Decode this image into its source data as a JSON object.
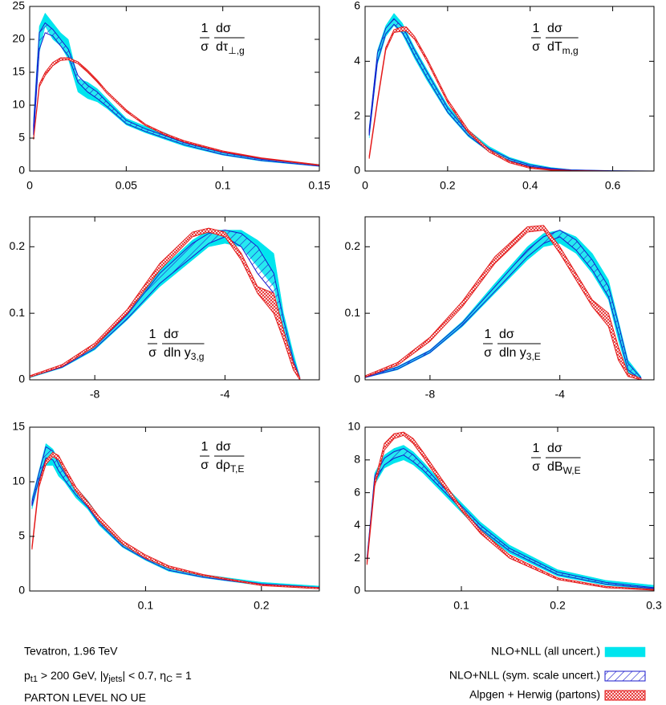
{
  "chart_data": [
    {
      "type": "line",
      "label": {
        "one": "1",
        "sigma": "σ",
        "dsigma": "dσ",
        "d": "dτ",
        "sub": "⊥,g"
      },
      "x": [
        0.002,
        0.005,
        0.008,
        0.012,
        0.016,
        0.02,
        0.025,
        0.03,
        0.035,
        0.04,
        0.05,
        0.06,
        0.07,
        0.08,
        0.1,
        0.12,
        0.15
      ],
      "xlim": [
        0,
        0.15
      ],
      "xticks": [
        0,
        0.05,
        0.1,
        0.15
      ],
      "ylim": [
        0,
        25
      ],
      "yticks": [
        0,
        5,
        10,
        15,
        20,
        25
      ],
      "series": [
        {
          "lower": [
            5,
            18,
            22,
            20,
            19,
            17,
            12,
            11,
            10.5,
            9.5,
            7,
            5.8,
            4.8,
            3.8,
            2.4,
            1.5,
            0.7
          ],
          "upper": [
            8,
            22,
            24,
            22.5,
            21,
            20,
            14,
            13.5,
            12.5,
            11,
            8,
            6.8,
            5.8,
            4.5,
            3,
            1.9,
            1.0
          ]
        },
        {
          "lower": [
            5.5,
            18.5,
            21,
            20.5,
            19,
            17.5,
            13.5,
            12,
            11,
            9.8,
            7.2,
            6,
            5,
            4,
            2.5,
            1.6,
            0.75
          ],
          "upper": [
            7,
            21,
            22.5,
            21.5,
            20,
            18.5,
            14.5,
            13,
            12,
            10.5,
            7.7,
            6.4,
            5.4,
            4.3,
            2.8,
            1.8,
            0.9
          ]
        },
        {
          "lower": [
            4.8,
            12.8,
            14.5,
            16,
            16.8,
            16.9,
            16.3,
            15,
            13.5,
            11.8,
            9,
            6.9,
            5.5,
            4.4,
            2.9,
            1.9,
            0.85
          ],
          "upper": [
            5,
            13.2,
            15,
            16.5,
            17.2,
            17.2,
            16.6,
            15.3,
            13.8,
            12.1,
            9.3,
            7.1,
            5.7,
            4.6,
            3.05,
            2.0,
            0.95
          ]
        }
      ]
    },
    {
      "type": "line",
      "label": {
        "one": "1",
        "sigma": "σ",
        "dsigma": "dσ",
        "d": "dT",
        "sub": "m,g"
      },
      "x": [
        0.01,
        0.03,
        0.05,
        0.07,
        0.09,
        0.1,
        0.12,
        0.15,
        0.2,
        0.25,
        0.3,
        0.35,
        0.4,
        0.45,
        0.5,
        0.6,
        0.7
      ],
      "xlim": [
        0,
        0.7
      ],
      "xticks": [
        0,
        0.2,
        0.4,
        0.6
      ],
      "ylim": [
        0,
        6
      ],
      "yticks": [
        0,
        2,
        4,
        6
      ],
      "series": [
        {
          "lower": [
            1.2,
            3.9,
            4.9,
            5.3,
            5.0,
            4.7,
            4.1,
            3.3,
            2.1,
            1.25,
            0.7,
            0.35,
            0.15,
            0.06,
            0.02,
            0,
            0
          ],
          "upper": [
            1.6,
            4.4,
            5.3,
            5.75,
            5.4,
            5.1,
            4.5,
            3.7,
            2.4,
            1.5,
            0.9,
            0.5,
            0.27,
            0.13,
            0.05,
            0.01,
            0
          ]
        },
        {
          "lower": [
            1.3,
            4.0,
            5.0,
            5.35,
            5.05,
            4.8,
            4.2,
            3.4,
            2.15,
            1.3,
            0.72,
            0.38,
            0.17,
            0.07,
            0.02,
            0,
            0
          ],
          "upper": [
            1.5,
            4.3,
            5.2,
            5.55,
            5.25,
            5.0,
            4.4,
            3.6,
            2.3,
            1.4,
            0.82,
            0.45,
            0.22,
            0.1,
            0.04,
            0.01,
            0
          ]
        },
        {
          "lower": [
            0.45,
            2.5,
            4.4,
            5.05,
            5.1,
            5.1,
            4.8,
            4.0,
            2.5,
            1.4,
            0.7,
            0.3,
            0.1,
            0.03,
            0.01,
            0,
            0
          ],
          "upper": [
            0.55,
            2.6,
            4.5,
            5.15,
            5.25,
            5.25,
            4.9,
            4.1,
            2.6,
            1.5,
            0.78,
            0.36,
            0.14,
            0.05,
            0.02,
            0,
            0
          ]
        }
      ]
    },
    {
      "type": "line",
      "label": {
        "one": "1",
        "sigma": "σ",
        "dsigma": "dσ",
        "d": "dln y",
        "sub": "3,g"
      },
      "x": [
        -10,
        -9,
        -8,
        -7,
        -6,
        -5,
        -4.5,
        -4,
        -3.5,
        -3,
        -2.5,
        -2.2,
        -1.9,
        -1.7
      ],
      "xlim": [
        -10,
        -1.1
      ],
      "xticks": [
        -8,
        -4
      ],
      "ylim": [
        0,
        0.245
      ],
      "yticks": [
        0,
        0.1,
        0.2
      ],
      "series": [
        {
          "lower": [
            0.003,
            0.018,
            0.045,
            0.09,
            0.14,
            0.18,
            0.2,
            0.205,
            0.2,
            0.17,
            0.14,
            0.07,
            0.015,
            0
          ],
          "upper": [
            0.006,
            0.022,
            0.052,
            0.1,
            0.165,
            0.21,
            0.225,
            0.225,
            0.225,
            0.21,
            0.19,
            0.1,
            0.04,
            0.005
          ]
        },
        {
          "lower": [
            0.004,
            0.019,
            0.047,
            0.092,
            0.145,
            0.185,
            0.205,
            0.215,
            0.2,
            0.16,
            0.13,
            0.07,
            0.02,
            0
          ],
          "upper": [
            0.005,
            0.021,
            0.05,
            0.098,
            0.16,
            0.205,
            0.22,
            0.225,
            0.22,
            0.2,
            0.16,
            0.09,
            0.03,
            0.003
          ]
        },
        {
          "lower": [
            0.004,
            0.02,
            0.05,
            0.1,
            0.165,
            0.215,
            0.222,
            0.215,
            0.18,
            0.13,
            0.1,
            0.06,
            0.015,
            0
          ],
          "upper": [
            0.006,
            0.023,
            0.055,
            0.106,
            0.175,
            0.222,
            0.228,
            0.222,
            0.19,
            0.14,
            0.13,
            0.075,
            0.025,
            0.003
          ]
        }
      ]
    },
    {
      "type": "line",
      "label": {
        "one": "1",
        "sigma": "σ",
        "dsigma": "dσ",
        "d": "dln y",
        "sub": "3,E"
      },
      "x": [
        -10,
        -9,
        -8,
        -7,
        -6,
        -5,
        -4.5,
        -4,
        -3.5,
        -3,
        -2.5,
        -2.2,
        -1.9,
        -1.5
      ],
      "xlim": [
        -10,
        -1.1
      ],
      "xticks": [
        -8,
        -4
      ],
      "ylim": [
        0,
        0.245
      ],
      "yticks": [
        0,
        0.1,
        0.2
      ],
      "series": [
        {
          "lower": [
            0.003,
            0.015,
            0.04,
            0.08,
            0.13,
            0.18,
            0.2,
            0.205,
            0.19,
            0.16,
            0.12,
            0.06,
            0.01,
            0
          ],
          "upper": [
            0.005,
            0.02,
            0.045,
            0.088,
            0.145,
            0.2,
            0.22,
            0.225,
            0.215,
            0.19,
            0.15,
            0.09,
            0.03,
            0.005
          ]
        },
        {
          "lower": [
            0.0035,
            0.016,
            0.041,
            0.082,
            0.133,
            0.185,
            0.205,
            0.215,
            0.195,
            0.165,
            0.125,
            0.07,
            0.015,
            0
          ],
          "upper": [
            0.0045,
            0.019,
            0.044,
            0.086,
            0.14,
            0.195,
            0.215,
            0.225,
            0.21,
            0.18,
            0.14,
            0.085,
            0.025,
            0.003
          ]
        },
        {
          "lower": [
            0.004,
            0.022,
            0.058,
            0.11,
            0.175,
            0.222,
            0.225,
            0.19,
            0.15,
            0.11,
            0.08,
            0.03,
            0.005,
            0
          ],
          "upper": [
            0.006,
            0.026,
            0.064,
            0.118,
            0.185,
            0.23,
            0.232,
            0.2,
            0.16,
            0.12,
            0.1,
            0.05,
            0.01,
            0.002
          ]
        }
      ]
    },
    {
      "type": "line",
      "label": {
        "one": "1",
        "sigma": "σ",
        "dsigma": "dσ",
        "d": "dρ",
        "sub": "T,E"
      },
      "x": [
        0.002,
        0.008,
        0.014,
        0.02,
        0.025,
        0.03,
        0.04,
        0.05,
        0.06,
        0.08,
        0.1,
        0.12,
        0.15,
        0.2,
        0.25
      ],
      "xlim": [
        0,
        0.25
      ],
      "xticks": [
        0.1,
        0.2
      ],
      "ylim": [
        0,
        15
      ],
      "yticks": [
        0,
        5,
        10,
        15
      ],
      "series": [
        {
          "lower": [
            7.5,
            10,
            11.5,
            11.5,
            10.5,
            10,
            8.5,
            7.5,
            6,
            4,
            2.8,
            1.8,
            1.2,
            0.5,
            0.2
          ],
          "upper": [
            8.5,
            11,
            13.5,
            13,
            12,
            11,
            9.5,
            8.3,
            6.8,
            4.6,
            3.2,
            2.2,
            1.5,
            0.8,
            0.45
          ]
        },
        {
          "lower": [
            7.8,
            10.2,
            12.2,
            12,
            11,
            10.2,
            8.8,
            7.7,
            6.2,
            4.1,
            2.9,
            1.9,
            1.25,
            0.55,
            0.25
          ],
          "upper": [
            8.2,
            10.8,
            13.2,
            12.8,
            11.6,
            10.8,
            9.3,
            8.1,
            6.6,
            4.4,
            3.1,
            2.1,
            1.4,
            0.65,
            0.32
          ]
        },
        {
          "lower": [
            3.8,
            9.5,
            11.6,
            12.3,
            12,
            11,
            9.1,
            7.8,
            6.4,
            4.3,
            3,
            2.1,
            1.4,
            0.5,
            0.2
          ],
          "upper": [
            4.1,
            9.9,
            12,
            12.7,
            12.4,
            11.4,
            9.5,
            8.2,
            6.8,
            4.6,
            3.3,
            2.3,
            1.5,
            0.6,
            0.3
          ]
        }
      ]
    },
    {
      "type": "line",
      "label": {
        "one": "1",
        "sigma": "σ",
        "dsigma": "dσ",
        "d": "dB",
        "sub": "W,E"
      },
      "x": [
        0.002,
        0.01,
        0.02,
        0.03,
        0.04,
        0.05,
        0.06,
        0.08,
        0.1,
        0.12,
        0.15,
        0.2,
        0.25,
        0.3
      ],
      "xlim": [
        0,
        0.3
      ],
      "xticks": [
        0.1,
        0.2,
        0.3
      ],
      "ylim": [
        0,
        10
      ],
      "yticks": [
        0,
        2,
        4,
        6,
        8,
        10
      ],
      "series": [
        {
          "lower": [
            1.8,
            6.5,
            7.5,
            7.8,
            8.0,
            7.7,
            7.2,
            6.0,
            4.8,
            3.6,
            2.3,
            0.9,
            0.35,
            0.1
          ],
          "upper": [
            2.1,
            7.2,
            8.3,
            8.7,
            8.9,
            8.5,
            7.9,
            6.6,
            5.4,
            4.2,
            2.8,
            1.3,
            0.65,
            0.35
          ]
        },
        {
          "lower": [
            1.9,
            6.7,
            7.7,
            8.1,
            8.3,
            7.9,
            7.4,
            6.2,
            5.0,
            3.8,
            2.45,
            1.0,
            0.42,
            0.15
          ],
          "upper": [
            2.0,
            7.0,
            8.1,
            8.5,
            8.7,
            8.3,
            7.7,
            6.4,
            5.2,
            4.0,
            2.6,
            1.15,
            0.52,
            0.2
          ]
        },
        {
          "lower": [
            1.6,
            6.4,
            8.6,
            9.3,
            9.5,
            9.0,
            8.2,
            6.5,
            4.9,
            3.5,
            2.0,
            0.7,
            0.2,
            0.05
          ],
          "upper": [
            1.8,
            6.7,
            9.0,
            9.6,
            9.7,
            9.3,
            8.5,
            6.8,
            5.1,
            3.7,
            2.2,
            0.8,
            0.28,
            0.1
          ]
        }
      ]
    }
  ],
  "legend": [
    {
      "name": "NLO+NLL (all uncert.)",
      "color": "#00e5ee",
      "fill": "solid"
    },
    {
      "name": "NLO+NLL (sym. scale uncert.)",
      "color": "#1a1acc",
      "fill": "hatch"
    },
    {
      "name": "Alpgen + Herwig (partons)",
      "color": "#e41a1a",
      "fill": "crosshatch"
    }
  ],
  "caption": [
    "Tevatron, 1.96 TeV",
    [
      "p",
      "t1",
      " > 200 GeV, |y",
      "jets",
      "| < 0.7, η",
      "C",
      " = 1"
    ],
    "PARTON LEVEL NO UE"
  ]
}
